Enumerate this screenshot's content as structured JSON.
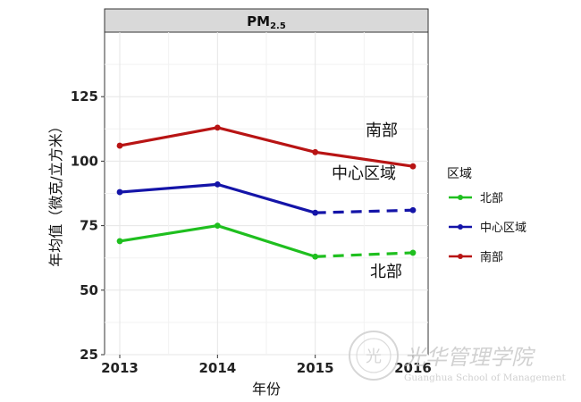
{
  "chart_data": {
    "type": "line",
    "title": "PM",
    "title_subscript": "2.5",
    "xlabel": "年份",
    "ylabel": "年均值（微克/立方米）",
    "x": [
      2013,
      2014,
      2015,
      2016
    ],
    "x_tick_labels": [
      "2013",
      "2014",
      "2015",
      "2016"
    ],
    "ylim": [
      25,
      150
    ],
    "y_ticks": [
      25,
      50,
      75,
      100,
      125
    ],
    "y_tick_labels": [
      "25",
      "50",
      "75",
      "100",
      "125"
    ],
    "grid": true,
    "legend_title": "区域",
    "legend_position": "right",
    "series": [
      {
        "name": "北部",
        "color": "#1fbf1f",
        "values": [
          69,
          75,
          63,
          64.5
        ],
        "dashed_last_segment": true,
        "label": "北部"
      },
      {
        "name": "中心区域",
        "color": "#1414a8",
        "values": [
          88,
          91,
          80,
          81
        ],
        "dashed_last_segment": true,
        "label": "中心区域"
      },
      {
        "name": "南部",
        "color": "#b81414",
        "values": [
          106,
          113,
          103.5,
          98
        ],
        "dashed_last_segment": false,
        "label": "南部"
      }
    ]
  },
  "watermark": {
    "text_cn": "光华管理学院",
    "text_en": "Guanghua School of Management"
  }
}
